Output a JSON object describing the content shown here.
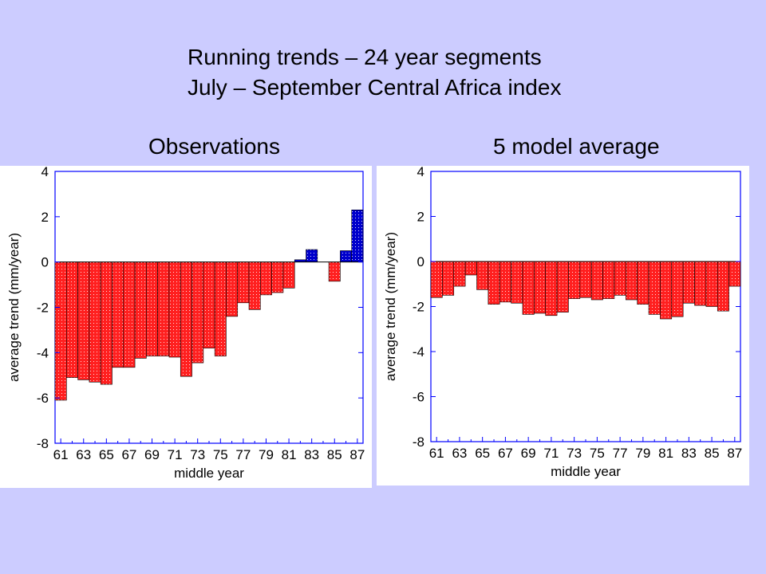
{
  "slide": {
    "title_line1": "Running trends – 24 year segments",
    "title_line2": "July – September Central Africa index"
  },
  "chart_data": [
    {
      "type": "bar",
      "title": "Observations",
      "xlabel": "middle year",
      "ylabel": "average trend (mm/year)",
      "ylim": [
        -8,
        4
      ],
      "yticks": [
        4,
        2,
        0,
        -2,
        -4,
        -6,
        -8
      ],
      "x": [
        61,
        62,
        63,
        64,
        65,
        66,
        67,
        68,
        69,
        70,
        71,
        72,
        73,
        74,
        75,
        76,
        77,
        78,
        79,
        80,
        81,
        82,
        83,
        84,
        85,
        86,
        87
      ],
      "xtick_labels": [
        "61",
        "63",
        "65",
        "67",
        "69",
        "71",
        "73",
        "75",
        "77",
        "79",
        "81",
        "83",
        "85",
        "87"
      ],
      "values": [
        -6.1,
        -5.1,
        -5.2,
        -5.3,
        -5.4,
        -4.65,
        -4.65,
        -4.25,
        -4.15,
        -4.15,
        -4.2,
        -5.05,
        -4.45,
        -3.8,
        -4.15,
        -2.4,
        -1.8,
        -2.1,
        -1.45,
        -1.35,
        -1.15,
        0.1,
        0.55,
        0.0,
        -0.85,
        0.5,
        2.3
      ],
      "colors": {
        "negative": "#ff2020",
        "positive": "#0000cc"
      }
    },
    {
      "type": "bar",
      "title": "5 model average",
      "xlabel": "middle year",
      "ylabel": "average trend (mm/year)",
      "ylim": [
        -8,
        4
      ],
      "yticks": [
        4,
        2,
        0,
        -2,
        -4,
        -6,
        -8
      ],
      "x": [
        61,
        62,
        63,
        64,
        65,
        66,
        67,
        68,
        69,
        70,
        71,
        72,
        73,
        74,
        75,
        76,
        77,
        78,
        79,
        80,
        81,
        82,
        83,
        84,
        85,
        86,
        87
      ],
      "xtick_labels": [
        "61",
        "63",
        "65",
        "67",
        "69",
        "71",
        "73",
        "75",
        "77",
        "79",
        "81",
        "83",
        "85",
        "87"
      ],
      "values": [
        -1.6,
        -1.5,
        -1.1,
        -0.6,
        -1.25,
        -1.9,
        -1.8,
        -1.85,
        -2.35,
        -2.3,
        -2.4,
        -2.25,
        -1.65,
        -1.6,
        -1.7,
        -1.65,
        -1.5,
        -1.7,
        -1.9,
        -2.35,
        -2.55,
        -2.45,
        -1.85,
        -1.95,
        -2.0,
        -2.2,
        -1.1
      ],
      "colors": {
        "negative": "#ff2020",
        "positive": "#0000cc"
      }
    }
  ]
}
